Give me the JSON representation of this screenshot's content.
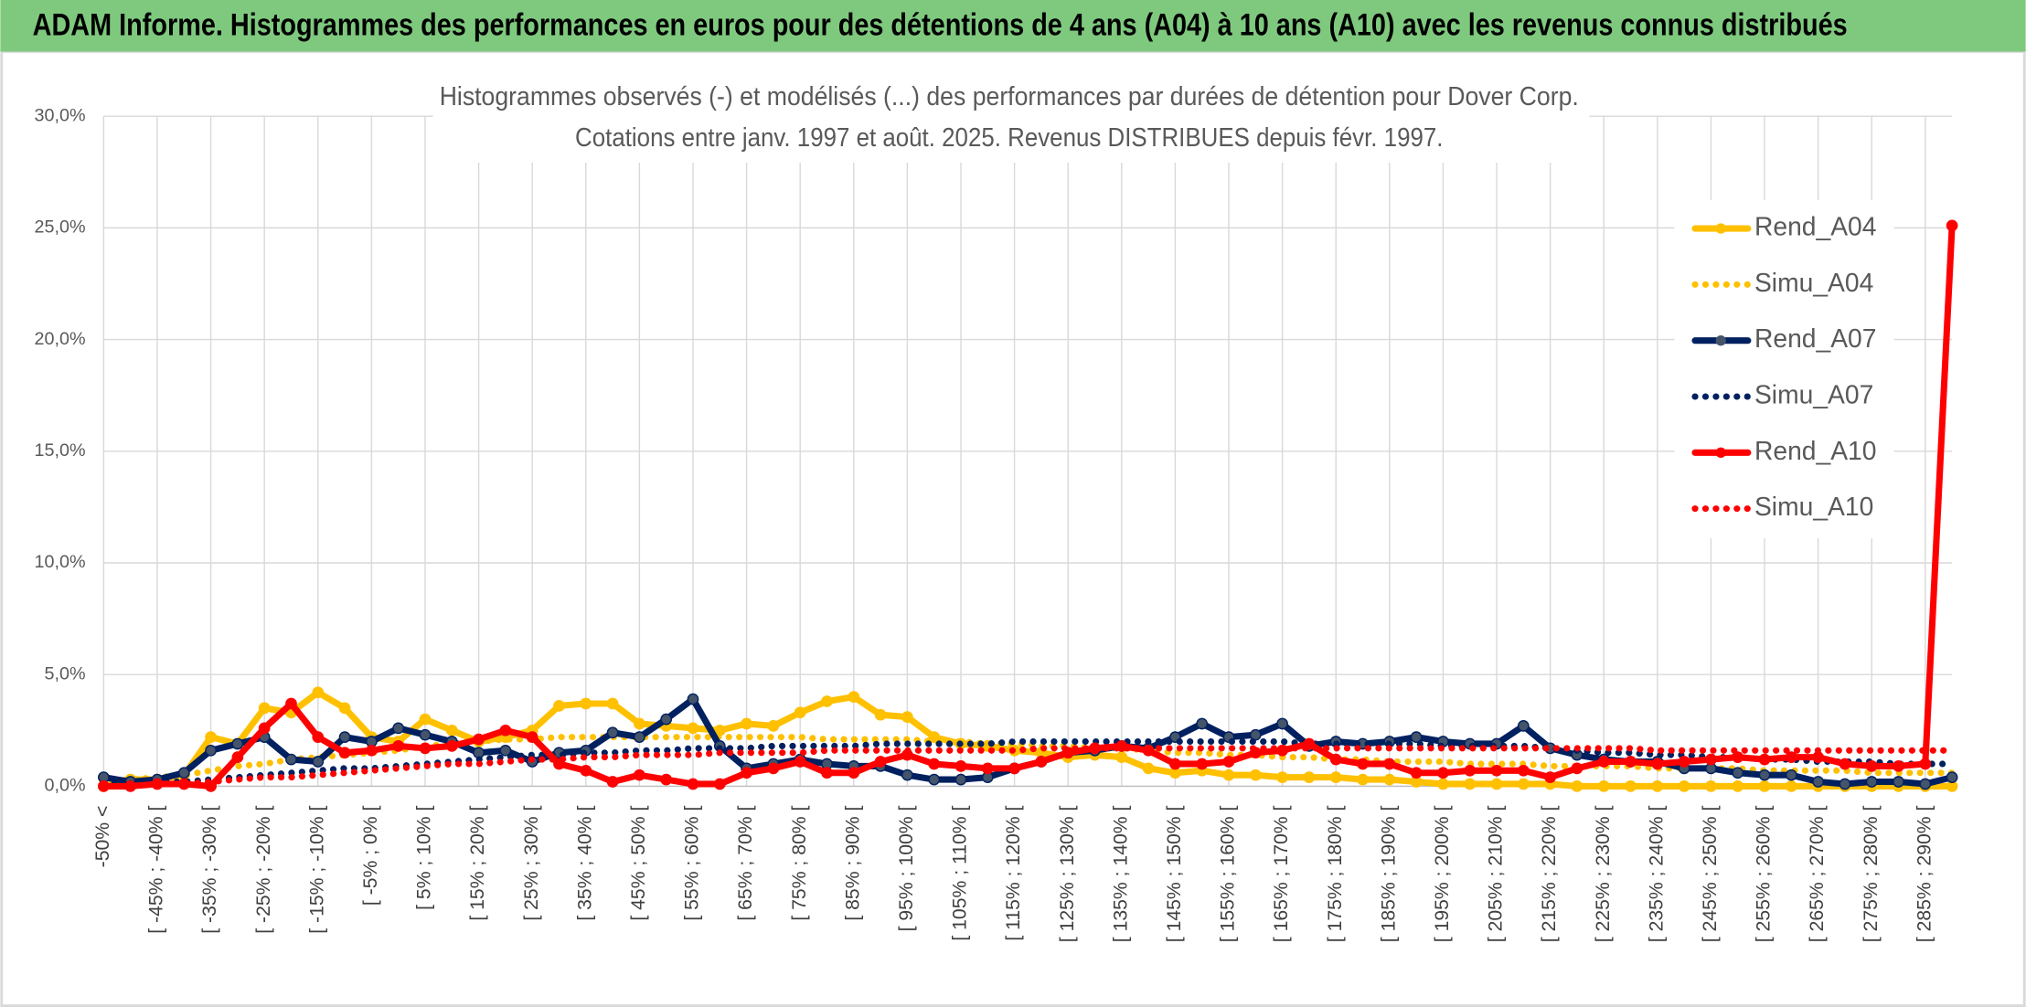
{
  "chart_data": {
    "type": "line",
    "header": "ADAM Informe. Histogrammes des performances en euros pour des détentions de 4 ans (A04) à 10 ans (A10) avec les revenus connus distribués",
    "title": "Histogrammes observés (-) et modélisés (...) des performances par durées de détention pour Dover Corp.",
    "subtitle": "Cotations entre janv. 1997 et août. 2025. Revenus DISTRIBUES depuis févr. 1997.",
    "categories": [
      "-50% <",
      null,
      "[ -45% ; -40% [",
      null,
      "[ -35% ; -30% [",
      null,
      "[ -25% ; -20% [",
      null,
      "[ -15% ; -10% [",
      null,
      "[ -5% ; 0% [",
      null,
      "[ 5% ; 10% [",
      null,
      "[ 15% ; 20% [",
      null,
      "[ 25% ; 30% [",
      null,
      "[ 35% ; 40% [",
      null,
      "[ 45% ; 50% [",
      null,
      "[ 55% ; 60% [",
      null,
      "[ 65% ; 70% [",
      null,
      "[ 75% ; 80% [",
      null,
      "[ 85% ; 90% [",
      null,
      "[ 95% ; 100% [",
      null,
      "[ 105% ; 110% [",
      null,
      "[ 115% ; 120% [",
      null,
      "[ 125% ; 130% [",
      null,
      "[ 135% ; 140% [",
      null,
      "[ 145% ; 150% [",
      null,
      "[ 155% ; 160% [",
      null,
      "[ 165% ; 170% [",
      null,
      "[ 175% ; 180% [",
      null,
      "[ 185% ; 190% [",
      null,
      "[ 195% ; 200% [",
      null,
      "[ 205% ; 210% [",
      null,
      "[ 215% ; 220% [",
      null,
      "[ 225% ; 230% [",
      null,
      "[ 235% ; 240% [",
      null,
      "[ 245% ; 250% [",
      null,
      "[ 255% ; 260% [",
      null,
      "[ 265% ; 270% [",
      null,
      "[ 275% ; 280% [",
      null,
      "[ 285% ; 290% [",
      null
    ],
    "series": [
      {
        "name": "Rend_A04",
        "color": "#ffc000",
        "style": "solid",
        "markers": true,
        "values": [
          0.0,
          0.3,
          0.3,
          0.5,
          2.2,
          1.9,
          3.5,
          3.3,
          4.2,
          3.5,
          2.2,
          2.0,
          3.0,
          2.5,
          2.0,
          2.2,
          2.5,
          3.6,
          3.7,
          3.7,
          2.8,
          2.7,
          2.6,
          2.5,
          2.8,
          2.7,
          3.3,
          3.8,
          4.0,
          3.2,
          3.1,
          2.2,
          1.9,
          1.8,
          1.6,
          1.5,
          1.3,
          1.4,
          1.3,
          0.8,
          0.6,
          0.7,
          0.5,
          0.5,
          0.4,
          0.4,
          0.4,
          0.3,
          0.3,
          0.2,
          0.1,
          0.1,
          0.1,
          0.1,
          0.1,
          0.0,
          0.0,
          0.0,
          0.0,
          0.0,
          0.0,
          0.0,
          0.0,
          0.0,
          0.0,
          0.0,
          0.0,
          0.0,
          0.0,
          0.0
        ]
      },
      {
        "name": "Simu_A04",
        "color": "#ffc000",
        "style": "dotted",
        "markers": false,
        "values": [
          0.2,
          0.3,
          0.4,
          0.5,
          0.7,
          0.9,
          1.0,
          1.2,
          1.3,
          1.4,
          1.5,
          1.6,
          1.8,
          1.9,
          2.0,
          2.1,
          2.1,
          2.2,
          2.2,
          2.2,
          2.2,
          2.2,
          2.2,
          2.2,
          2.2,
          2.2,
          2.2,
          2.1,
          2.1,
          2.1,
          2.1,
          2.0,
          2.0,
          1.9,
          1.9,
          1.8,
          1.8,
          1.7,
          1.7,
          1.6,
          1.5,
          1.5,
          1.4,
          1.4,
          1.3,
          1.3,
          1.2,
          1.2,
          1.1,
          1.1,
          1.1,
          1.0,
          1.0,
          1.0,
          0.9,
          0.9,
          0.9,
          0.9,
          0.8,
          0.8,
          0.8,
          0.8,
          0.7,
          0.7,
          0.7,
          0.7,
          0.6,
          0.6,
          0.6,
          0.6
        ]
      },
      {
        "name": "Rend_A07",
        "color": "#002060",
        "style": "solid",
        "markers": true,
        "values": [
          0.4,
          0.2,
          0.3,
          0.6,
          1.6,
          1.9,
          2.2,
          1.2,
          1.1,
          2.2,
          2.0,
          2.6,
          2.3,
          2.0,
          1.5,
          1.6,
          1.1,
          1.5,
          1.6,
          2.4,
          2.2,
          3.0,
          3.9,
          1.8,
          0.8,
          1.0,
          1.2,
          1.0,
          0.9,
          0.9,
          0.5,
          0.3,
          0.3,
          0.4,
          0.8,
          1.1,
          1.5,
          1.6,
          1.8,
          1.7,
          2.2,
          2.8,
          2.2,
          2.3,
          2.8,
          1.8,
          2.0,
          1.9,
          2.0,
          2.2,
          2.0,
          1.9,
          1.9,
          2.7,
          1.7,
          1.4,
          1.2,
          1.1,
          1.1,
          0.8,
          0.8,
          0.6,
          0.5,
          0.5,
          0.2,
          0.1,
          0.2,
          0.2,
          0.1,
          0.4
        ]
      },
      {
        "name": "Simu_A07",
        "color": "#002060",
        "style": "dotted",
        "markers": false,
        "values": [
          0.1,
          0.1,
          0.2,
          0.2,
          0.3,
          0.4,
          0.5,
          0.6,
          0.7,
          0.8,
          0.8,
          0.9,
          1.0,
          1.1,
          1.2,
          1.3,
          1.4,
          1.4,
          1.5,
          1.5,
          1.6,
          1.6,
          1.7,
          1.7,
          1.7,
          1.8,
          1.8,
          1.8,
          1.8,
          1.9,
          1.9,
          1.9,
          1.9,
          1.9,
          2.0,
          2.0,
          2.0,
          2.0,
          2.0,
          2.0,
          2.0,
          2.0,
          2.0,
          2.0,
          2.0,
          1.9,
          1.9,
          1.9,
          1.9,
          1.9,
          1.8,
          1.8,
          1.8,
          1.8,
          1.7,
          1.6,
          1.5,
          1.5,
          1.4,
          1.4,
          1.3,
          1.3,
          1.2,
          1.2,
          1.1,
          1.1,
          1.1,
          1.0,
          1.0,
          1.0
        ]
      },
      {
        "name": "Rend_A10",
        "color": "#ff0000",
        "style": "solid",
        "markers": true,
        "values": [
          0.0,
          0.0,
          0.1,
          0.1,
          0.0,
          1.3,
          2.6,
          3.7,
          2.2,
          1.5,
          1.6,
          1.8,
          1.7,
          1.8,
          2.1,
          2.5,
          2.2,
          1.0,
          0.7,
          0.2,
          0.5,
          0.3,
          0.1,
          0.1,
          0.6,
          0.8,
          1.1,
          0.6,
          0.6,
          1.1,
          1.4,
          1.0,
          0.9,
          0.8,
          0.8,
          1.1,
          1.5,
          1.7,
          1.8,
          1.6,
          1.0,
          1.0,
          1.1,
          1.5,
          1.6,
          1.9,
          1.2,
          1.0,
          1.0,
          0.6,
          0.6,
          0.7,
          0.7,
          0.7,
          0.4,
          0.8,
          1.1,
          1.1,
          1.0,
          1.1,
          1.2,
          1.3,
          1.2,
          1.3,
          1.3,
          1.0,
          0.9,
          0.9,
          1.0,
          25.1
        ]
      },
      {
        "name": "Simu_A10",
        "color": "#ff0000",
        "style": "dotted",
        "markers": false,
        "values": [
          0.0,
          0.0,
          0.1,
          0.1,
          0.2,
          0.3,
          0.4,
          0.4,
          0.5,
          0.6,
          0.7,
          0.8,
          0.9,
          1.0,
          1.0,
          1.1,
          1.2,
          1.2,
          1.3,
          1.3,
          1.4,
          1.4,
          1.4,
          1.5,
          1.5,
          1.5,
          1.5,
          1.6,
          1.6,
          1.6,
          1.6,
          1.6,
          1.6,
          1.6,
          1.6,
          1.7,
          1.7,
          1.7,
          1.7,
          1.7,
          1.7,
          1.7,
          1.7,
          1.7,
          1.7,
          1.7,
          1.7,
          1.7,
          1.7,
          1.7,
          1.7,
          1.7,
          1.7,
          1.7,
          1.7,
          1.7,
          1.7,
          1.7,
          1.6,
          1.6,
          1.6,
          1.6,
          1.6,
          1.6,
          1.6,
          1.6,
          1.6,
          1.6,
          1.6,
          1.6
        ]
      }
    ],
    "ylim": [
      0,
      30
    ],
    "yticks": [
      {
        "value": 0,
        "label": "0,0%"
      },
      {
        "value": 5,
        "label": "5,0%"
      },
      {
        "value": 10,
        "label": "10,0%"
      },
      {
        "value": 15,
        "label": "15,0%"
      },
      {
        "value": 20,
        "label": "20,0%"
      },
      {
        "value": 25,
        "label": "25,0%"
      },
      {
        "value": 30,
        "label": "30,0%"
      }
    ],
    "grid": true,
    "legend": "right"
  }
}
